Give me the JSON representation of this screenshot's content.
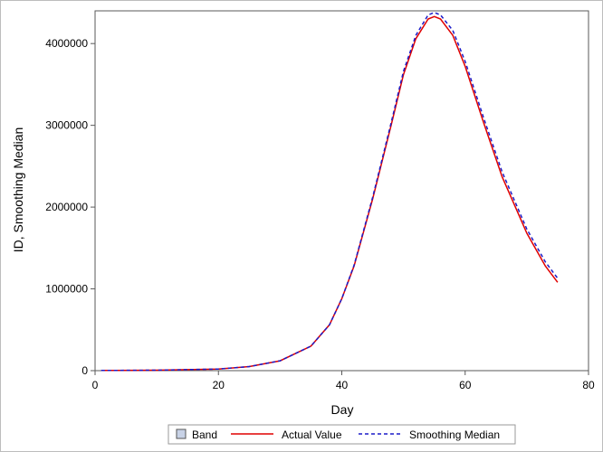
{
  "chart_data": {
    "type": "line",
    "xlabel": "Day",
    "ylabel": "ID, Smoothing Median",
    "xlim": [
      0,
      80
    ],
    "ylim": [
      0,
      4400000
    ],
    "x_ticks": [
      0,
      20,
      40,
      60,
      80
    ],
    "y_ticks": [
      0,
      1000000,
      2000000,
      3000000,
      4000000
    ],
    "x_tick_labels": [
      "0",
      "20",
      "40",
      "60",
      "80"
    ],
    "y_tick_labels": [
      "0",
      "1000000",
      "2000000",
      "3000000",
      "4000000"
    ],
    "grid": false,
    "legend_position": "bottom",
    "legend": [
      "Band",
      "Actual Value",
      "Smoothing Median"
    ],
    "series": [
      {
        "name": "Actual Value",
        "color": "#e00000",
        "style": "solid",
        "x": [
          1,
          10,
          20,
          25,
          30,
          35,
          38,
          40,
          42,
          45,
          48,
          50,
          52,
          54,
          55,
          56,
          58,
          60,
          63,
          66,
          70,
          73,
          75
        ],
        "y": [
          2000,
          5000,
          20000,
          50000,
          120000,
          300000,
          560000,
          880000,
          1280000,
          2100000,
          3000000,
          3620000,
          4060000,
          4300000,
          4330000,
          4300000,
          4100000,
          3720000,
          3030000,
          2370000,
          1680000,
          1280000,
          1080000
        ]
      },
      {
        "name": "Smoothing Median",
        "color": "#1c1cc8",
        "style": "dashed",
        "x": [
          1,
          10,
          20,
          25,
          30,
          35,
          38,
          40,
          42,
          45,
          48,
          50,
          52,
          54,
          55,
          56,
          58,
          60,
          63,
          66,
          70,
          73,
          75
        ],
        "y": [
          2000,
          5000,
          20000,
          50000,
          120000,
          300000,
          560000,
          880000,
          1290000,
          2120000,
          3030000,
          3660000,
          4100000,
          4350000,
          4380000,
          4350000,
          4160000,
          3780000,
          3090000,
          2430000,
          1730000,
          1330000,
          1130000
        ]
      }
    ]
  },
  "colors": {
    "band_fill": "#c8d2e6",
    "band_stroke": "#555555",
    "axis": "#5a5a5a"
  }
}
